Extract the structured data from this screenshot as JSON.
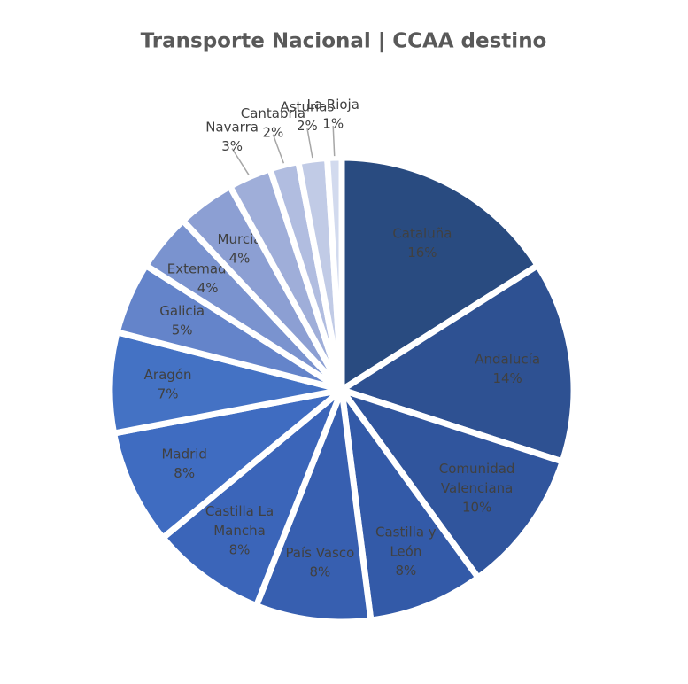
{
  "chart_data": {
    "type": "pie",
    "title": "Transporte Nacional | CCAA destino",
    "categories": [
      "Cataluña",
      "Andalucía",
      "Comunidad Valenciana",
      "Castilla y León",
      "País Vasco",
      "Castilla La Mancha",
      "Madrid",
      "Aragón",
      "Galicia",
      "Extemadura",
      "Murcia",
      "Navarra",
      "Cantabria",
      "Asturias",
      "La Rioja"
    ],
    "values": [
      16,
      14,
      10,
      8,
      8,
      8,
      8,
      7,
      5,
      4,
      4,
      3,
      2,
      2,
      1
    ],
    "value_labels": [
      "16%",
      "14%",
      "10%",
      "8%",
      "8%",
      "8%",
      "8%",
      "7%",
      "5%",
      "4%",
      "4%",
      "3%",
      "2%",
      "2%",
      "1%"
    ],
    "colors": [
      "#294b80",
      "#2e5192",
      "#30559d",
      "#335aa8",
      "#375fb0",
      "#3b65b9",
      "#3f6cc1",
      "#4472c4",
      "#6484ca",
      "#7a93cf",
      "#8c9fd3",
      "#9faed9",
      "#b1bde0",
      "#c1cbe6",
      "#d2daee"
    ]
  }
}
